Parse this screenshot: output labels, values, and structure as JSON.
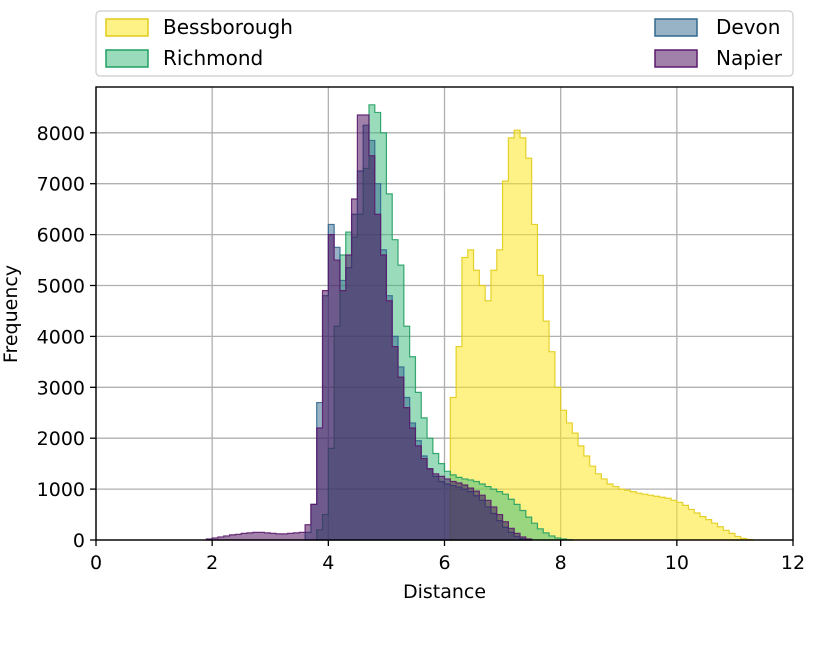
{
  "chart_data": {
    "type": "histogram",
    "xlabel": "Distance",
    "ylabel": "Frequency",
    "xlim": [
      0,
      12
    ],
    "ylim": [
      0,
      8900
    ],
    "xticks": [
      "0",
      "2",
      "4",
      "6",
      "8",
      "10",
      "12"
    ],
    "yticks": [
      "0",
      "1000",
      "2000",
      "3000",
      "4000",
      "5000",
      "6000",
      "7000",
      "8000"
    ],
    "grid": true,
    "legend_position": "top",
    "bin_width": 0.1,
    "series": [
      {
        "name": "Bessborough",
        "color": "#fde725",
        "edge": "#e2cc1a",
        "alpha": 0.55,
        "bin_start": 6.1,
        "values": [
          2800,
          3800,
          5550,
          5700,
          5300,
          5000,
          4700,
          5300,
          5700,
          7050,
          7900,
          8050,
          7900,
          7500,
          6200,
          5200,
          4300,
          3700,
          3000,
          2550,
          2300,
          2100,
          1850,
          1650,
          1450,
          1300,
          1200,
          1100,
          1050,
          1000,
          980,
          950,
          920,
          900,
          880,
          860,
          840,
          820,
          780,
          740,
          680,
          600,
          530,
          460,
          400,
          330,
          260,
          190,
          130,
          70,
          30,
          10
        ]
      },
      {
        "name": "Richmond",
        "color": "#35b779",
        "edge": "#239f62",
        "alpha": 0.5,
        "bin_start": 3.8,
        "values": [
          200,
          500,
          1800,
          4200,
          5600,
          6050,
          5950,
          6400,
          7300,
          8550,
          8400,
          8000,
          6800,
          5900,
          5400,
          4200,
          3600,
          2900,
          2400,
          2000,
          1700,
          1500,
          1350,
          1280,
          1230,
          1200,
          1180,
          1150,
          1100,
          1050,
          1000,
          950,
          900,
          800,
          700,
          580,
          450,
          330,
          220,
          140,
          80,
          40,
          20,
          5
        ]
      },
      {
        "name": "Devon",
        "color": "#31688e",
        "edge": "#31688e",
        "alpha": 0.5,
        "bin_start": 3.6,
        "values": [
          150,
          700,
          2700,
          4800,
          6200,
          5750,
          5100,
          5350,
          6400,
          7250,
          8150,
          7850,
          7000,
          5700,
          4800,
          4000,
          3400,
          2800,
          2300,
          1950,
          1650,
          1400,
          1250,
          1150,
          1100,
          1070,
          1040,
          1000,
          950,
          870,
          780,
          650,
          520,
          380,
          250,
          150,
          70,
          25,
          8
        ]
      },
      {
        "name": "Napier",
        "color": "#440154",
        "edge": "#5c1a6e",
        "alpha": 0.5,
        "bin_start": 1.9,
        "values": [
          20,
          40,
          60,
          80,
          100,
          110,
          130,
          140,
          150,
          150,
          140,
          130,
          120,
          120,
          130,
          140,
          150,
          300,
          700,
          2200,
          4900,
          6000,
          5500,
          4900,
          5600,
          6700,
          8350,
          8350,
          7550,
          6400,
          5600,
          4700,
          3800,
          3200,
          2600,
          2200,
          1850,
          1600,
          1400,
          1300,
          1250,
          1200,
          1150,
          1120,
          1080,
          1020,
          960,
          880,
          780,
          650,
          500,
          360,
          230,
          130,
          60,
          20
        ]
      }
    ]
  }
}
